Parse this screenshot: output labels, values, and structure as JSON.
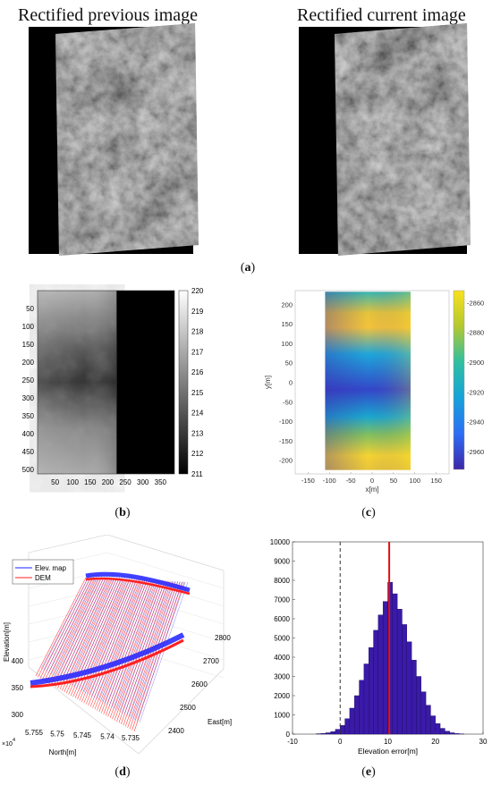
{
  "panel_a": {
    "left_title": "Rectified previous image",
    "right_title": "Rectified current image",
    "caption": "a"
  },
  "panel_b": {
    "caption": "b"
  },
  "panel_c": {
    "caption": "c"
  },
  "panel_d": {
    "caption": "d"
  },
  "panel_e": {
    "caption": "e"
  },
  "chart_data": [
    {
      "id": "b",
      "type": "heatmap",
      "colormap": "gray",
      "x_ticks": [
        50,
        100,
        150,
        200,
        250,
        300,
        350
      ],
      "y_ticks": [
        50,
        100,
        150,
        200,
        250,
        300,
        350,
        400,
        450,
        500
      ],
      "xlim": [
        0,
        390
      ],
      "ylim": [
        0,
        512
      ],
      "colorbar_ticks": [
        211,
        212,
        213,
        214,
        215,
        216,
        217,
        218,
        219,
        220
      ],
      "colorbar_range": [
        211,
        220
      ]
    },
    {
      "id": "c",
      "type": "heatmap",
      "colormap": "parula",
      "xlabel": "x[m]",
      "ylabel": "y[m]",
      "x_ticks": [
        -150,
        -100,
        -50,
        0,
        50,
        100,
        150
      ],
      "y_ticks": [
        -200,
        -150,
        -100,
        -50,
        0,
        50,
        100,
        150,
        200
      ],
      "xlim": [
        -180,
        180
      ],
      "ylim": [
        -235,
        235
      ],
      "colorbar_ticks": [
        -2860,
        -2880,
        -2900,
        -2920,
        -2940,
        -2960
      ],
      "colorbar_range": [
        -2972,
        -2852
      ]
    },
    {
      "id": "d",
      "type": "scatter",
      "legend": [
        "Elev. map",
        "DEM"
      ],
      "legend_colors": [
        "#1f1fff",
        "#ff2020"
      ],
      "legend_placement": "top-left",
      "zlabel": "Elevation[m]",
      "xlabel": "North[m]",
      "ylabel": "East[m]",
      "z_ticks": [
        300,
        350,
        400
      ],
      "north_ticks": [
        "5.755",
        "5.75",
        "5.745",
        "5.74",
        "5.735"
      ],
      "north_multiplier": "×10",
      "north_exponent": "4",
      "east_ticks": [
        2400,
        2500,
        2600,
        2700,
        2800
      ]
    },
    {
      "id": "e",
      "type": "bar",
      "xlabel": "Elevation error[m]",
      "xlim": [
        -10,
        30
      ],
      "ylim": [
        0,
        10000
      ],
      "x_ticks": [
        -10,
        0,
        10,
        20,
        30
      ],
      "y_ticks": [
        0,
        1000,
        2000,
        3000,
        4000,
        5000,
        6000,
        7000,
        8000,
        9000,
        10000
      ],
      "bin_width": 1,
      "bin_starts": [
        -5,
        -4,
        -3,
        -2,
        -1,
        0,
        1,
        2,
        3,
        4,
        5,
        6,
        7,
        8,
        9,
        10,
        11,
        12,
        13,
        14,
        15,
        16,
        17,
        18,
        19,
        20,
        21,
        22,
        23,
        24,
        25
      ],
      "values": [
        20,
        40,
        70,
        130,
        250,
        450,
        800,
        1350,
        2000,
        2800,
        3650,
        4500,
        5400,
        6200,
        6900,
        7900,
        7300,
        6500,
        5700,
        4800,
        3850,
        3000,
        2200,
        1500,
        950,
        550,
        300,
        150,
        70,
        30,
        10
      ],
      "bar_color": "#3a1aa8",
      "mean_line": 10.3,
      "mean_line_color": "#e01010",
      "zero_line": 0
    }
  ]
}
